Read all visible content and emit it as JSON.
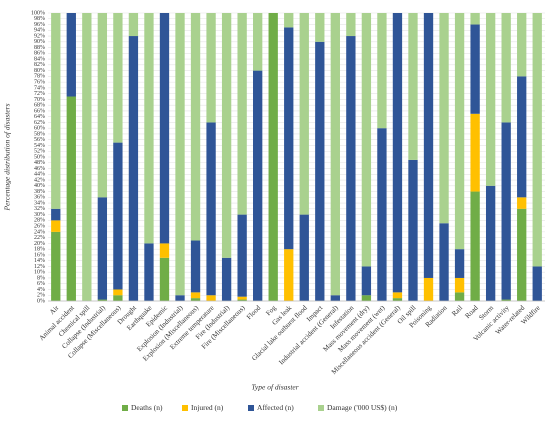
{
  "chart_data": {
    "type": "stacked_bar_100",
    "x_label": "Type of disaster",
    "y_label": "Percentage distribution of disasters",
    "categories": [
      "Air",
      "Animal accident",
      "Chemical spill",
      "Collapse (Industrial)",
      "Collapse (Miscellaneous)",
      "Drought",
      "Earthquake",
      "Epidemic",
      "Explosion (Industrial)",
      "Explosion (Miscellaneous)",
      "Extreme temperature",
      "Fire (Industrial)",
      "Fire (Miscellaneous)",
      "Flood",
      "Fog",
      "Gas leak",
      "Glacial lake outburst flood",
      "Impact",
      "Industrial accident (General)",
      "Infestation",
      "Mass movement (dry)",
      "Mass movement (wet)",
      "Miscellaneous accident (General)",
      "Oil spill",
      "Poisoning",
      "Radiation",
      "Rail",
      "Road",
      "Storm",
      "Volcanic activity",
      "Water-related",
      "Wildfire"
    ],
    "series": [
      {
        "name": "Deaths (n)",
        "color": "#70ad47",
        "values": [
          24,
          71,
          0,
          0.5,
          2,
          0,
          0,
          15,
          0,
          1,
          0,
          0,
          0.5,
          0,
          100,
          0,
          0,
          0,
          0,
          0,
          2,
          0,
          1,
          0,
          0,
          0,
          3,
          38,
          0,
          0.5,
          32,
          0
        ]
      },
      {
        "name": "Injured (n)",
        "color": "#ffc000",
        "values": [
          4,
          0,
          0,
          0,
          2,
          0,
          0,
          5,
          0,
          2,
          2,
          0,
          1,
          0,
          0,
          18,
          0,
          0,
          0,
          0,
          0,
          0,
          2,
          0,
          8,
          0,
          5,
          27,
          0,
          0,
          4,
          0
        ]
      },
      {
        "name": "Affected (n)",
        "color": "#2f5597",
        "values": [
          4,
          29,
          0,
          35.5,
          51,
          92,
          20,
          80,
          2,
          18,
          60,
          15,
          28.5,
          80,
          0,
          77,
          30,
          90,
          2,
          92,
          10,
          60,
          97,
          49,
          92,
          27,
          10,
          31,
          40,
          61.5,
          42,
          12
        ]
      },
      {
        "name": "Damage ('000 US$) (n)",
        "color": "#a9d18e",
        "values": [
          68,
          0,
          100,
          64,
          45,
          8,
          80,
          0,
          98,
          79,
          38,
          85,
          70,
          20,
          0,
          5,
          70,
          10,
          98,
          8,
          88,
          40,
          0,
          51,
          0,
          73,
          82,
          4,
          60,
          38,
          22,
          88
        ]
      }
    ],
    "ylim": [
      0,
      100
    ],
    "yticks": [
      {
        "value": 0,
        "label": "0%"
      },
      {
        "value": 2,
        "label": "2%"
      },
      {
        "value": 4,
        "label": "4%"
      },
      {
        "value": 6,
        "label": "6%"
      },
      {
        "value": 8,
        "label": "8%"
      },
      {
        "value": 10,
        "label": "10%"
      },
      {
        "value": 12,
        "label": "12%"
      },
      {
        "value": 14,
        "label": "14%"
      },
      {
        "value": 16,
        "label": "16%"
      },
      {
        "value": 18,
        "label": "18%"
      },
      {
        "value": 20,
        "label": "20%"
      },
      {
        "value": 22,
        "label": "22%"
      },
      {
        "value": 24,
        "label": "24%"
      },
      {
        "value": 26,
        "label": "26%"
      },
      {
        "value": 28,
        "label": "28%"
      },
      {
        "value": 30,
        "label": "30%"
      },
      {
        "value": 32,
        "label": "32%"
      },
      {
        "value": 34,
        "label": "34%"
      },
      {
        "value": 36,
        "label": "36%"
      },
      {
        "value": 38,
        "label": "38%"
      },
      {
        "value": 40,
        "label": "40%"
      },
      {
        "value": 42,
        "label": "42%"
      },
      {
        "value": 44,
        "label": "44%"
      },
      {
        "value": 46,
        "label": "46%"
      },
      {
        "value": 48,
        "label": "48%"
      },
      {
        "value": 50,
        "label": "50%"
      },
      {
        "value": 52,
        "label": "52%"
      },
      {
        "value": 54,
        "label": "54%"
      },
      {
        "value": 56,
        "label": "56%"
      },
      {
        "value": 58,
        "label": "58%"
      },
      {
        "value": 60,
        "label": "60%"
      },
      {
        "value": 62,
        "label": "62%"
      },
      {
        "value": 64,
        "label": "64%"
      },
      {
        "value": 66,
        "label": "66%"
      },
      {
        "value": 68,
        "label": "68%"
      },
      {
        "value": 70,
        "label": "70%"
      },
      {
        "value": 72,
        "label": "72%"
      },
      {
        "value": 74,
        "label": "74%"
      },
      {
        "value": 76,
        "label": "76%"
      },
      {
        "value": 78,
        "label": "78%"
      },
      {
        "value": 80,
        "label": "80%"
      },
      {
        "value": 82,
        "label": "82%"
      },
      {
        "value": 84,
        "label": "84%"
      },
      {
        "value": 86,
        "label": "86%"
      },
      {
        "value": 88,
        "label": "88%"
      },
      {
        "value": 90,
        "label": "90%"
      },
      {
        "value": 92,
        "label": "92%"
      },
      {
        "value": 94,
        "label": "94%"
      },
      {
        "value": 96,
        "label": "96%"
      },
      {
        "value": 98,
        "label": "98%"
      },
      {
        "value": 100,
        "label": "100%"
      }
    ],
    "grid": true,
    "legend": "bottom"
  }
}
